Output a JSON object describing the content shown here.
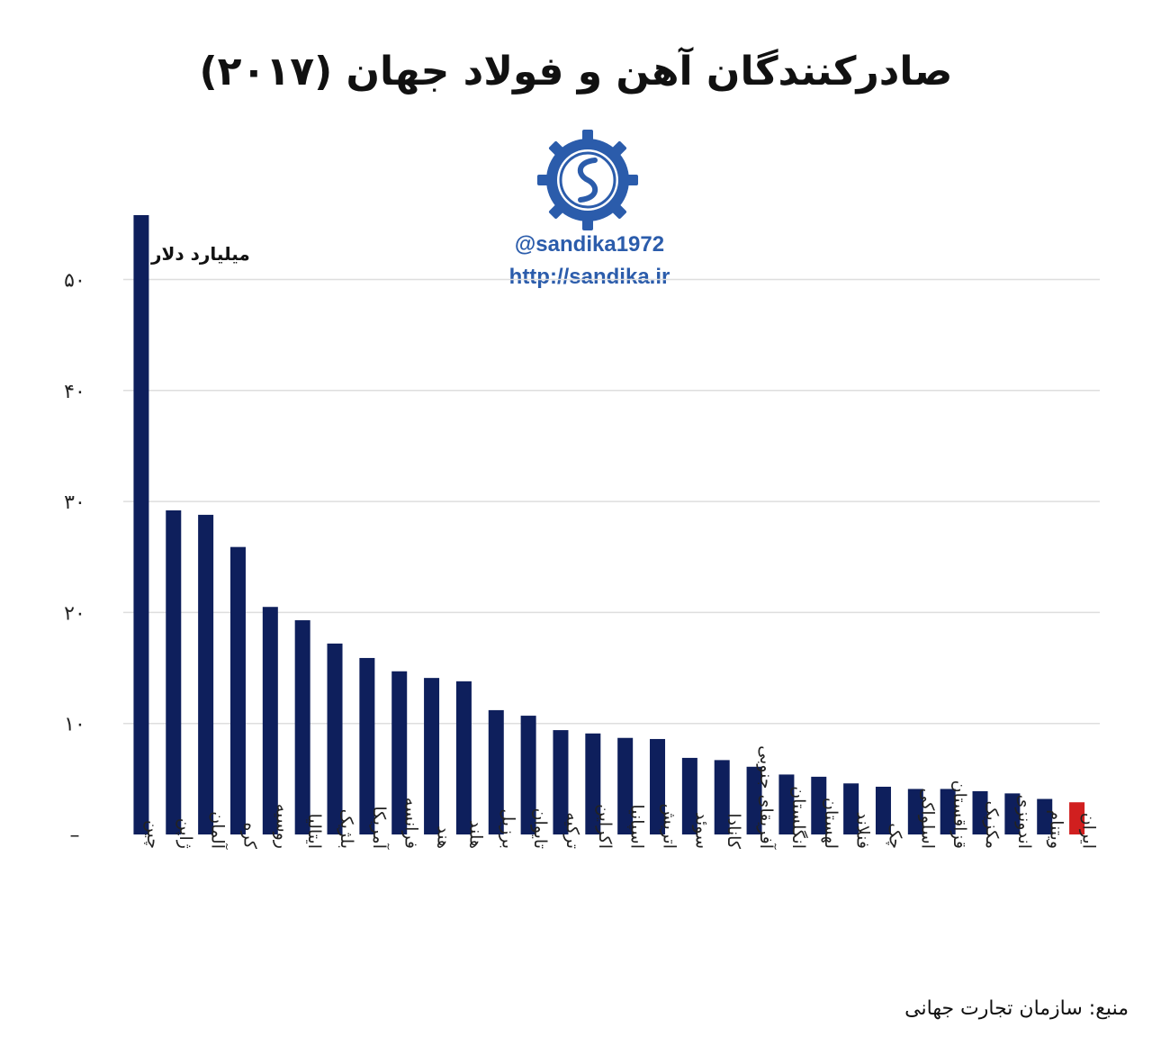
{
  "title": "صادرکنندگان آهن و فولاد جهان (۲۰۱۷)",
  "logo": {
    "handle": "@sandika1972",
    "url": "http://sandika.ir"
  },
  "unit_label": "میلیارد دلار",
  "source": "منبع: سازمان تجارت جهانی",
  "colors": {
    "bar": "#0e1f5c",
    "highlight": "#d11f1f",
    "grid": "#dedede",
    "brand": "#2b5cab"
  },
  "chart_data": {
    "type": "bar",
    "title": "صادرکنندگان آهن و فولاد جهان (۲۰۱۷)",
    "ylabel": "میلیارد دلار",
    "ylim": [
      0,
      55
    ],
    "yticks": [
      0,
      10,
      20,
      30,
      40,
      50
    ],
    "ytick_labels": [
      "–",
      "۱۰",
      "۲۰",
      "۳۰",
      "۴۰",
      "۵۰"
    ],
    "grid": true,
    "categories": [
      "چین",
      "ژاپن",
      "آلمان",
      "کره",
      "روسیه",
      "ایتالیا",
      "بلژیک",
      "آمریکا",
      "فرانسه",
      "هند",
      "هلند",
      "برزیل",
      "تایوان",
      "ترکیه",
      "اکراین",
      "اسپانیا",
      "اتریش",
      "سوئد",
      "کانادا",
      "آفریقای جنوبی",
      "انگلستان",
      "لهستان",
      "فنلاند",
      "چک",
      "اسلواکی",
      "قزاقستان",
      "مکزیک",
      "اندونزی",
      "ویتنام",
      "ایران"
    ],
    "values": [
      55.8,
      29.2,
      28.8,
      25.9,
      20.5,
      19.3,
      17.2,
      15.9,
      14.7,
      14.1,
      13.8,
      11.2,
      10.7,
      9.4,
      9.1,
      8.7,
      8.6,
      6.9,
      6.7,
      6.1,
      5.4,
      5.2,
      4.6,
      4.3,
      4.1,
      4.1,
      3.9,
      3.7,
      3.2,
      2.9
    ],
    "highlight_category": "ایران"
  }
}
